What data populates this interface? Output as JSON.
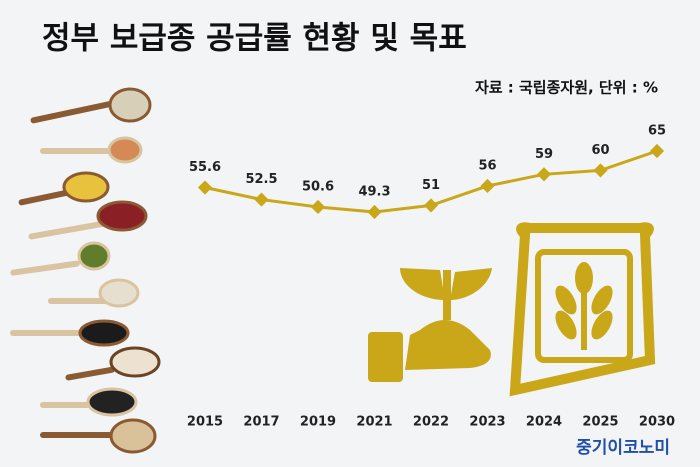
{
  "chart_data": {
    "type": "line",
    "title": "정부 보급종 공급률 현황 및 목표",
    "source_note": "자료 : 국립종자원, 단위 : %",
    "brand": "중기이코노미",
    "categories": [
      "2015",
      "2017",
      "2019",
      "2021",
      "2022",
      "2023",
      "2024",
      "2025",
      "2030"
    ],
    "values": [
      55.6,
      52.5,
      50.6,
      49.3,
      51,
      56,
      59,
      60,
      65
    ],
    "color": "#c9a719"
  }
}
